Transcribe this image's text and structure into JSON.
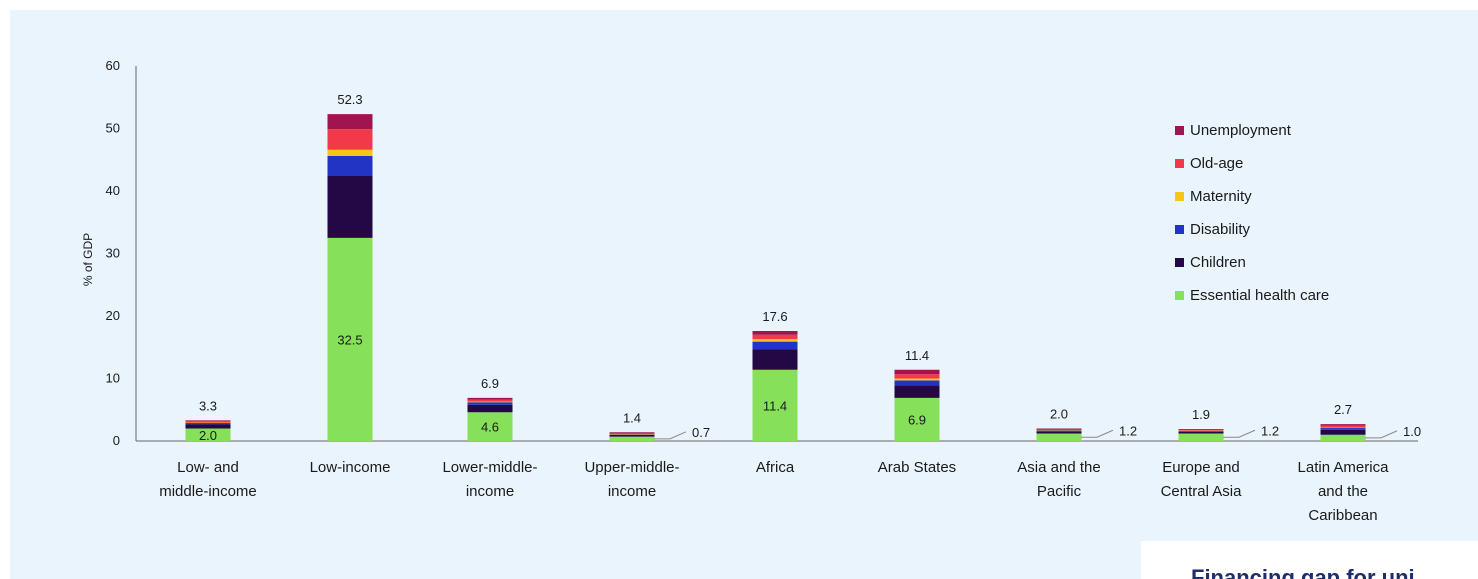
{
  "chart_data": {
    "type": "bar",
    "stacked": true,
    "ylabel": "% of GDP",
    "ylim": [
      0,
      60
    ],
    "yticks": [
      0,
      10,
      20,
      30,
      40,
      50,
      60
    ],
    "grid": false,
    "legend_position": "right",
    "categories": [
      [
        "Low- and",
        "middle-income"
      ],
      [
        "Low-income"
      ],
      [
        "Lower-middle-",
        "income"
      ],
      [
        "Upper-middle-",
        "income"
      ],
      [
        "Africa"
      ],
      [
        "Arab States"
      ],
      [
        "Asia and the",
        "Pacific"
      ],
      [
        "Europe and",
        "Central Asia"
      ],
      [
        "Latin America",
        "and the",
        "Caribbean"
      ]
    ],
    "totals": [
      3.3,
      52.3,
      6.9,
      1.4,
      17.6,
      11.4,
      2.0,
      1.9,
      2.7
    ],
    "total_labels": [
      "3.3",
      "52.3",
      "6.9",
      "1.4",
      "17.6",
      "11.4",
      "2.0",
      "1.9",
      "2.7"
    ],
    "health_labels": [
      "2.0",
      "32.5",
      "4.6",
      "0.7",
      "11.4",
      "6.9",
      "1.2",
      "1.2",
      "1.0"
    ],
    "series": [
      {
        "name": "Essential health care",
        "color": "#86e05a",
        "values": [
          2.0,
          32.5,
          4.6,
          0.7,
          11.4,
          6.9,
          1.2,
          1.2,
          1.0
        ]
      },
      {
        "name": "Children",
        "color": "#230845",
        "values": [
          0.7,
          9.9,
          1.2,
          0.3,
          3.3,
          2.0,
          0.3,
          0.3,
          0.8
        ]
      },
      {
        "name": "Disability",
        "color": "#2234c4",
        "values": [
          0.2,
          3.2,
          0.4,
          0.1,
          1.2,
          0.8,
          0.2,
          0.1,
          0.3
        ]
      },
      {
        "name": "Maternity",
        "color": "#f5c518",
        "values": [
          0.05,
          1.0,
          0.1,
          0.02,
          0.4,
          0.3,
          0.05,
          0.05,
          0.05
        ]
      },
      {
        "name": "Old-age",
        "color": "#f2394a",
        "values": [
          0.2,
          3.3,
          0.3,
          0.1,
          0.7,
          0.7,
          0.1,
          0.1,
          0.3
        ]
      },
      {
        "name": "Unemployment",
        "color": "#a0154f",
        "values": [
          0.15,
          2.4,
          0.3,
          0.18,
          0.6,
          0.7,
          0.15,
          0.15,
          0.25
        ]
      }
    ]
  },
  "corner_card": {
    "text": "Financing gap for uni"
  }
}
